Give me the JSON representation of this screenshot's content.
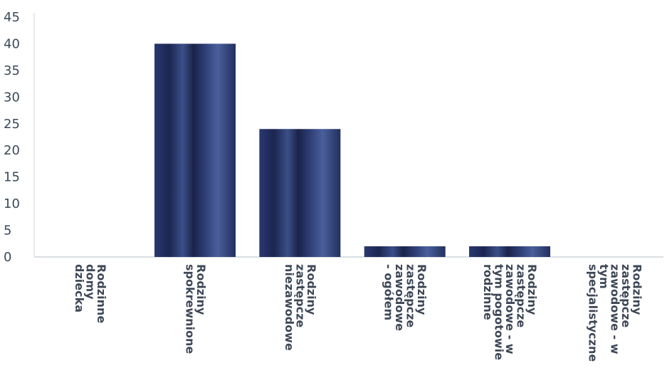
{
  "chart_data": {
    "type": "bar",
    "categories": [
      "Rodzinne domy dziecka",
      "Rodziny spokrewnione",
      "Rodziny zastępcze niezawodowe",
      "Rodziny zastępcze zawodowe - ogółem",
      "Rodziny zastępcze zawodowe - w tym pogotowie rodzinne",
      "Rodziny zastępcze zawodowe - w tym specjalistyczne"
    ],
    "category_lines": [
      [
        "Rodzinne",
        "domy",
        "dziecka"
      ],
      [
        "Rodziny",
        "spokrewnione"
      ],
      [
        "Rodziny",
        "zastępcze",
        "niezawodowe"
      ],
      [
        "Rodziny",
        "zastępcze",
        "zawodowe",
        "- ogółem"
      ],
      [
        "Rodziny",
        "zastępcze",
        "zawodowe - w",
        "tym pogotowie",
        "rodzinne"
      ],
      [
        "Rodziny",
        "zastępcze",
        "zawodowe - w",
        "tym",
        "specjalistyczne"
      ]
    ],
    "values": [
      0,
      40,
      24,
      2,
      2,
      0
    ],
    "ylim": [
      0,
      45
    ],
    "yticks": [
      0,
      5,
      10,
      15,
      20,
      25,
      30,
      35,
      40,
      45
    ],
    "title": "",
    "xlabel": "",
    "ylabel": "",
    "grid": false,
    "legend": "none",
    "colors": {
      "bar_dark": "#1e2a55",
      "bar_mid": "#3a4e86",
      "bar_light": "#5a6fa8",
      "axis": "#cfd3d8",
      "tick_text": "#3a4a5a",
      "label_text": "#3d4756",
      "label_text_alt": "#5b6c80"
    }
  }
}
